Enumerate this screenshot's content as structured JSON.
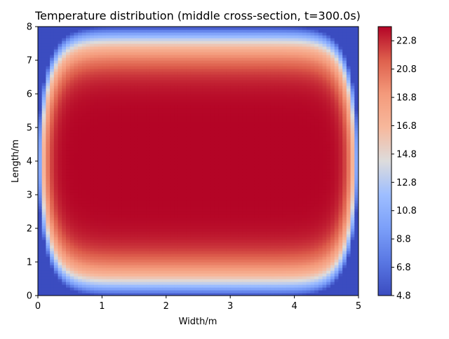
{
  "chart_data": {
    "type": "heatmap",
    "subtype": "filled-contour",
    "title": "Temperature distribution (middle cross-section, t=300.0s)",
    "xlabel": "Width/m",
    "ylabel": "Length/m",
    "xlim": [
      0,
      5
    ],
    "ylim": [
      0,
      8
    ],
    "xticks": [
      0,
      1,
      2,
      3,
      4,
      5
    ],
    "yticks": [
      0,
      1,
      2,
      3,
      4,
      5,
      6,
      7,
      8
    ],
    "xtick_labels": [
      "0",
      "1",
      "2",
      "3",
      "4",
      "5"
    ],
    "ytick_labels": [
      "0",
      "1",
      "2",
      "3",
      "4",
      "5",
      "6",
      "7",
      "8"
    ],
    "colormap": "coolwarm",
    "colorbar": {
      "range": [
        4.8,
        23.8
      ],
      "ticks": [
        4.8,
        6.8,
        8.8,
        10.8,
        12.8,
        14.8,
        16.8,
        18.8,
        20.8,
        22.8
      ],
      "tick_labels": [
        "4.8",
        "6.8",
        "8.8",
        "10.8",
        "12.8",
        "14.8",
        "16.8",
        "18.8",
        "20.8",
        "22.8"
      ],
      "location": "right"
    },
    "field": {
      "min_value": 4.8,
      "max_value": 23.8,
      "center": [
        2.5,
        4.0
      ],
      "plateau_region_x": [
        0.35,
        4.75
      ],
      "plateau_region_y": [
        1.85,
        6.15
      ],
      "boundary_value": 4.8
    },
    "grid": false
  }
}
